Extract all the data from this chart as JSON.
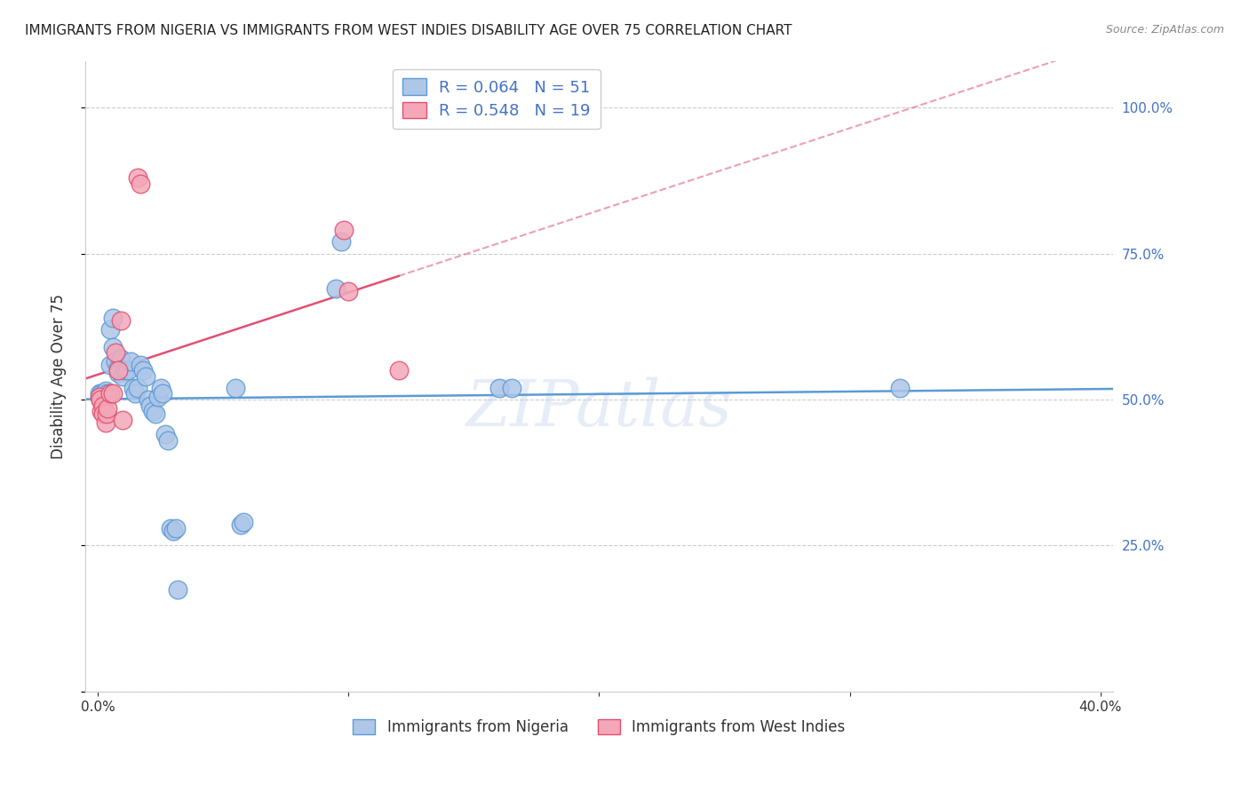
{
  "title": "IMMIGRANTS FROM NIGERIA VS IMMIGRANTS FROM WEST INDIES DISABILITY AGE OVER 75 CORRELATION CHART",
  "source": "Source: ZipAtlas.com",
  "ylabel": "Disability Age Over 75",
  "label_nigeria": "Immigrants from Nigeria",
  "label_west_indies": "Immigrants from West Indies",
  "color_nigeria_fill": "#aec6e8",
  "color_west_indies_fill": "#f4a7b9",
  "color_nigeria_edge": "#5b9bd5",
  "color_west_indies_edge": "#e05070",
  "color_nigeria_line": "#5b9bd5",
  "color_west_indies_line": "#e05070",
  "color_legend_text": "#4472c4",
  "watermark": "ZIPatlas",
  "nigeria_x": [
    0.0005,
    0.001,
    0.001,
    0.0015,
    0.002,
    0.002,
    0.0025,
    0.003,
    0.003,
    0.003,
    0.004,
    0.004,
    0.005,
    0.005,
    0.006,
    0.006,
    0.007,
    0.008,
    0.008,
    0.009,
    0.01,
    0.011,
    0.012,
    0.013,
    0.014,
    0.015,
    0.016,
    0.017,
    0.018,
    0.019,
    0.02,
    0.021,
    0.022,
    0.023,
    0.024,
    0.025,
    0.026,
    0.027,
    0.028,
    0.029,
    0.03,
    0.031,
    0.032,
    0.055,
    0.057,
    0.058,
    0.095,
    0.097,
    0.16,
    0.165,
    0.32
  ],
  "nigeria_y": [
    0.51,
    0.505,
    0.5,
    0.51,
    0.505,
    0.5,
    0.51,
    0.505,
    0.51,
    0.515,
    0.51,
    0.505,
    0.62,
    0.56,
    0.64,
    0.59,
    0.565,
    0.555,
    0.545,
    0.57,
    0.54,
    0.55,
    0.55,
    0.565,
    0.52,
    0.51,
    0.52,
    0.56,
    0.55,
    0.54,
    0.5,
    0.49,
    0.48,
    0.475,
    0.505,
    0.52,
    0.51,
    0.44,
    0.43,
    0.28,
    0.275,
    0.28,
    0.175,
    0.52,
    0.285,
    0.29,
    0.69,
    0.77,
    0.52,
    0.52,
    0.52
  ],
  "west_indies_x": [
    0.0005,
    0.001,
    0.0015,
    0.002,
    0.002,
    0.003,
    0.0035,
    0.004,
    0.005,
    0.006,
    0.007,
    0.008,
    0.009,
    0.01,
    0.016,
    0.017,
    0.098,
    0.1,
    0.12
  ],
  "west_indies_y": [
    0.505,
    0.5,
    0.48,
    0.49,
    0.475,
    0.46,
    0.475,
    0.485,
    0.51,
    0.51,
    0.58,
    0.55,
    0.635,
    0.465,
    0.88,
    0.87,
    0.79,
    0.685,
    0.55
  ],
  "x_min": -0.005,
  "x_max": 0.405,
  "y_min": 0.0,
  "y_max": 1.08,
  "x_ticks": [
    0.0,
    0.1,
    0.2,
    0.3,
    0.4
  ],
  "x_tick_labels": [
    "0.0%",
    "",
    "",
    "",
    "40.0%"
  ],
  "y_ticks": [
    0.25,
    0.5,
    0.75,
    1.0
  ],
  "y_tick_labels": [
    "25.0%",
    "50.0%",
    "75.0%",
    "100.0%"
  ]
}
